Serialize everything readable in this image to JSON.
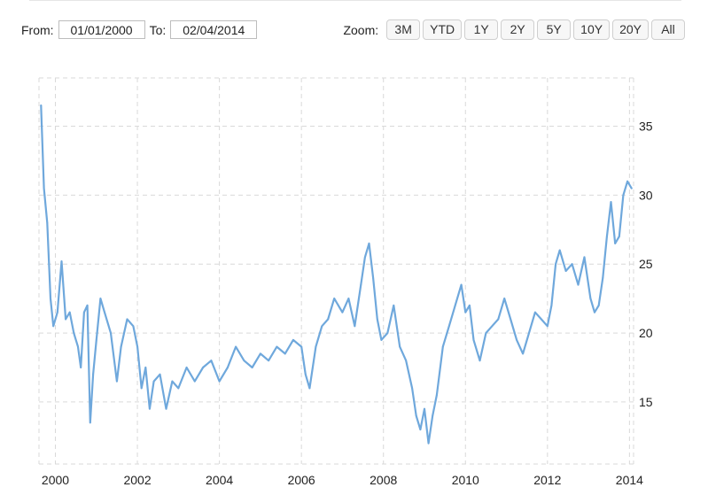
{
  "range": {
    "from_label": "From:",
    "from_value": "01/01/2000",
    "to_label": "To:",
    "to_value": "02/04/2014"
  },
  "zoom": {
    "label": "Zoom:",
    "buttons": [
      "3M",
      "YTD",
      "1Y",
      "2Y",
      "5Y",
      "10Y",
      "20Y",
      "All"
    ]
  },
  "colors": {
    "series": "#6fa8dc",
    "grid": "#d9d9d9"
  },
  "chart_data": {
    "type": "line",
    "title": "",
    "xlabel": "",
    "ylabel": "",
    "x_ticks": [
      "2000",
      "2002",
      "2004",
      "2006",
      "2008",
      "2010",
      "2012",
      "2014"
    ],
    "y_ticks": [
      15,
      20,
      25,
      30,
      35
    ],
    "xlim": [
      1999.6,
      2014.1
    ],
    "ylim": [
      10.5,
      38.5
    ],
    "grid": true,
    "series": [
      {
        "name": "",
        "x": [
          1999.65,
          1999.72,
          1999.8,
          1999.88,
          1999.95,
          2000.05,
          2000.15,
          2000.25,
          2000.35,
          2000.45,
          2000.55,
          2000.62,
          2000.7,
          2000.78,
          2000.85,
          2000.92,
          2001.0,
          2001.1,
          2001.2,
          2001.35,
          2001.5,
          2001.6,
          2001.75,
          2001.9,
          2002.0,
          2002.1,
          2002.2,
          2002.3,
          2002.4,
          2002.55,
          2002.7,
          2002.85,
          2003.0,
          2003.2,
          2003.4,
          2003.6,
          2003.8,
          2004.0,
          2004.2,
          2004.4,
          2004.6,
          2004.8,
          2005.0,
          2005.2,
          2005.4,
          2005.6,
          2005.8,
          2006.0,
          2006.1,
          2006.2,
          2006.35,
          2006.5,
          2006.65,
          2006.8,
          2007.0,
          2007.15,
          2007.3,
          2007.45,
          2007.55,
          2007.65,
          2007.75,
          2007.85,
          2007.95,
          2008.1,
          2008.25,
          2008.4,
          2008.55,
          2008.7,
          2008.8,
          2008.9,
          2009.0,
          2009.1,
          2009.2,
          2009.3,
          2009.45,
          2009.6,
          2009.75,
          2009.9,
          2010.0,
          2010.1,
          2010.2,
          2010.35,
          2010.5,
          2010.65,
          2010.8,
          2010.95,
          2011.1,
          2011.25,
          2011.4,
          2011.55,
          2011.7,
          2011.85,
          2012.0,
          2012.1,
          2012.2,
          2012.3,
          2012.45,
          2012.6,
          2012.75,
          2012.9,
          2013.05,
          2013.15,
          2013.25,
          2013.35,
          2013.45,
          2013.55,
          2013.65,
          2013.75,
          2013.85,
          2013.95,
          2014.05
        ],
        "y": [
          36.5,
          30.5,
          28.0,
          22.5,
          20.5,
          21.5,
          25.2,
          21.0,
          21.5,
          20.0,
          19.0,
          17.5,
          21.5,
          22.0,
          13.5,
          17.0,
          19.5,
          22.5,
          21.5,
          20.0,
          16.5,
          19.0,
          21.0,
          20.5,
          19.0,
          16.0,
          17.5,
          14.5,
          16.5,
          17.0,
          14.5,
          16.5,
          16.0,
          17.5,
          16.5,
          17.5,
          18.0,
          16.5,
          17.5,
          19.0,
          18.0,
          17.5,
          18.5,
          18.0,
          19.0,
          18.5,
          19.5,
          19.0,
          17.0,
          16.0,
          19.0,
          20.5,
          21.0,
          22.5,
          21.5,
          22.5,
          20.5,
          23.5,
          25.5,
          26.5,
          24.0,
          21.0,
          19.5,
          20.0,
          22.0,
          19.0,
          18.0,
          16.0,
          14.0,
          13.0,
          14.5,
          12.0,
          14.0,
          15.5,
          19.0,
          20.5,
          22.0,
          23.5,
          21.5,
          22.0,
          19.5,
          18.0,
          20.0,
          20.5,
          21.0,
          22.5,
          21.0,
          19.5,
          18.5,
          20.0,
          21.5,
          21.0,
          20.5,
          22.0,
          25.0,
          26.0,
          24.5,
          25.0,
          23.5,
          25.5,
          22.5,
          21.5,
          22.0,
          24.0,
          27.0,
          29.5,
          26.5,
          27.0,
          30.0,
          31.0,
          30.5
        ]
      }
    ]
  }
}
